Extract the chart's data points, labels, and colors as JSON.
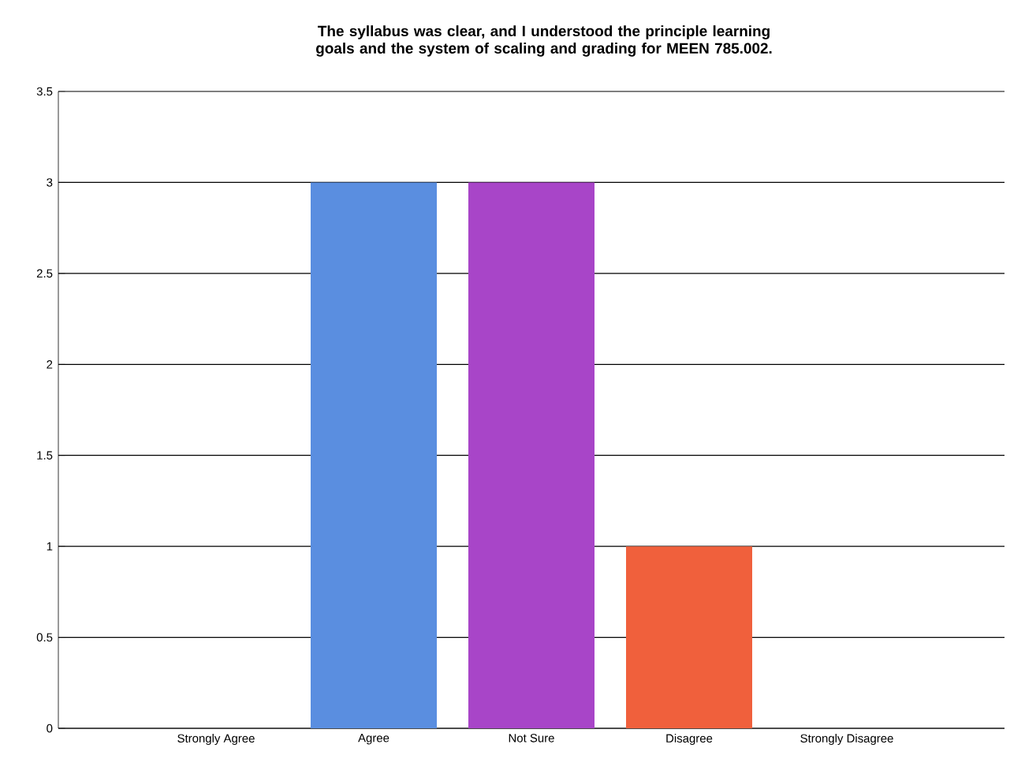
{
  "chart_data": {
    "type": "bar",
    "title": "The syllabus was clear, and I understood the principle learning goals and the system of scaling and grading for MEEN 785.002.",
    "categories": [
      "Strongly Agree",
      "Agree",
      "Not Sure",
      "Disagree",
      "Strongly Disagree"
    ],
    "values": [
      0,
      3,
      3,
      1,
      0
    ],
    "colors": [
      "#5a8ee0",
      "#5a8ee0",
      "#a845c8",
      "#f0603c",
      "#5a8ee0"
    ],
    "ylim": [
      0,
      3.5
    ],
    "yticks": [
      0,
      0.5,
      1,
      1.5,
      2,
      2.5,
      3,
      3.5
    ],
    "grid": "y"
  }
}
